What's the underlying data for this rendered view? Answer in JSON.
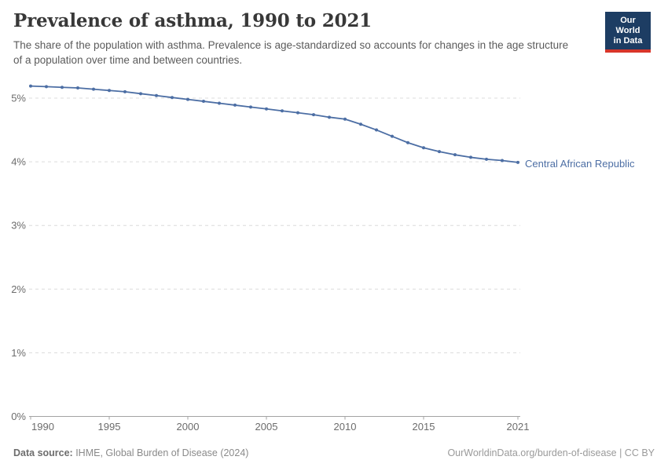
{
  "header": {
    "title": "Prevalence of asthma, 1990 to 2021",
    "subtitle": "The share of the population with asthma. Prevalence is age-standardized so accounts for changes in the age structure of a population over time and between countries."
  },
  "logo": {
    "line1": "Our World",
    "line2": "in Data",
    "background_color": "#1d3d63",
    "accent_color": "#d8352a"
  },
  "chart_data": {
    "type": "line",
    "title": "Prevalence of asthma, 1990 to 2021",
    "xlabel": "",
    "ylabel": "",
    "grid": "horizontal-dashed",
    "legend_position": "end-of-line-label",
    "xlim": [
      1990,
      2021
    ],
    "ylim": [
      0,
      5.3
    ],
    "x": [
      1990,
      1991,
      1992,
      1993,
      1994,
      1995,
      1996,
      1997,
      1998,
      1999,
      2000,
      2001,
      2002,
      2003,
      2004,
      2005,
      2006,
      2007,
      2008,
      2009,
      2010,
      2011,
      2012,
      2013,
      2014,
      2015,
      2016,
      2017,
      2018,
      2019,
      2020,
      2021
    ],
    "series": [
      {
        "name": "Central African Republic",
        "color": "#4c6ea4",
        "unit": "%",
        "values": [
          5.19,
          5.18,
          5.17,
          5.16,
          5.14,
          5.12,
          5.1,
          5.07,
          5.04,
          5.01,
          4.98,
          4.95,
          4.92,
          4.89,
          4.86,
          4.83,
          4.8,
          4.77,
          4.74,
          4.7,
          4.67,
          4.59,
          4.5,
          4.4,
          4.3,
          4.22,
          4.16,
          4.11,
          4.07,
          4.04,
          4.02,
          3.99
        ]
      }
    ],
    "x_ticks": [
      {
        "value": 1990,
        "label": "1990",
        "anchor": "start"
      },
      {
        "value": 1995,
        "label": "1995",
        "anchor": "middle"
      },
      {
        "value": 2000,
        "label": "2000",
        "anchor": "middle"
      },
      {
        "value": 2005,
        "label": "2005",
        "anchor": "middle"
      },
      {
        "value": 2010,
        "label": "2010",
        "anchor": "middle"
      },
      {
        "value": 2015,
        "label": "2015",
        "anchor": "middle"
      },
      {
        "value": 2021,
        "label": "2021",
        "anchor": "middle"
      }
    ],
    "y_ticks": [
      {
        "value": 0,
        "label": "0%"
      },
      {
        "value": 1,
        "label": "1%"
      },
      {
        "value": 2,
        "label": "2%"
      },
      {
        "value": 3,
        "label": "3%"
      },
      {
        "value": 4,
        "label": "4%"
      },
      {
        "value": 5,
        "label": "5%"
      }
    ]
  },
  "footer": {
    "source_label": "Data source:",
    "source_text": " IHME, Global Burden of Disease (2024)",
    "rights": "OurWorldinData.org/burden-of-disease | CC BY"
  }
}
